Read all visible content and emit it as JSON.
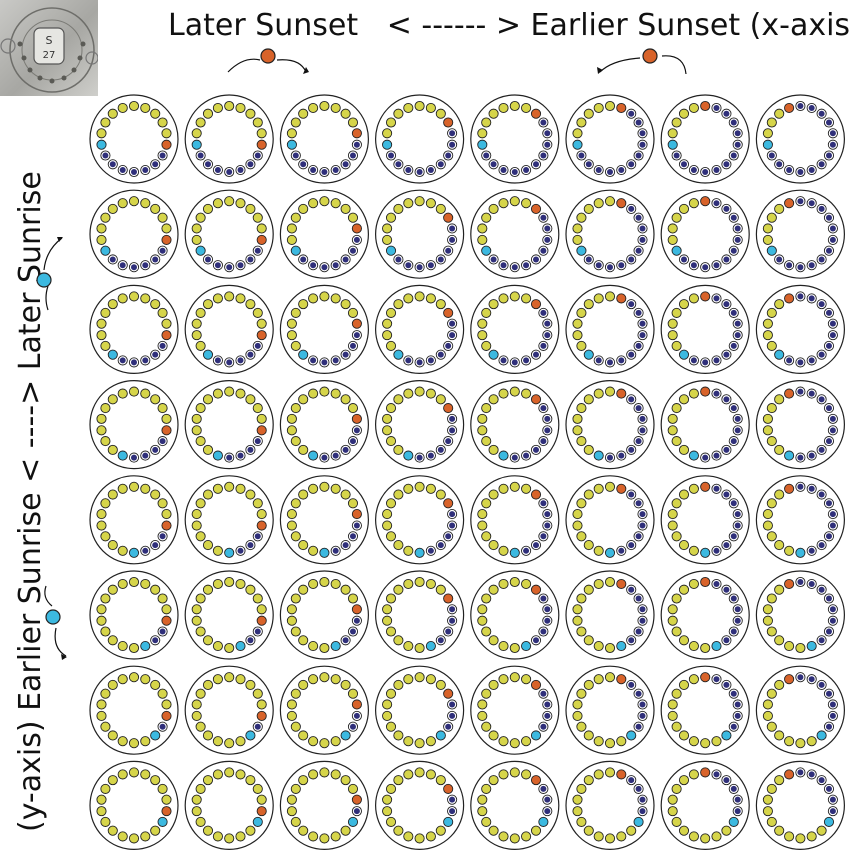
{
  "header": {
    "x_title": "Later Sunset   < ------ > Earlier Sunset (x-axis)",
    "y_title": "(y-axis) Earlier Sunrise < ----> Later Sunrise"
  },
  "photo": {
    "text_line1": "S",
    "text_line2": "27"
  },
  "colors": {
    "day": "#d6d54a",
    "night": "#2f2f7a",
    "sunset": "#d8632a",
    "sunrise": "#3cb9e0",
    "stroke": "#222222"
  },
  "chart_data": {
    "type": "diagram-grid",
    "rows": 8,
    "cols": 8,
    "dots_per_dial": 18,
    "description_of_encoding": "Each dial: 18 dots clockwise from top. Sunset position (orange) moves earlier along x; sunrise position (blue) moves later along y.",
    "sunset_index_by_col": [
      5,
      5,
      4,
      3,
      2,
      1,
      0,
      17
    ],
    "sunrise_index_by_row": [
      13,
      12,
      11,
      10,
      9,
      8,
      7,
      6
    ],
    "legend_icons": [
      {
        "name": "sunset-marker-left",
        "color": "sunset"
      },
      {
        "name": "sunset-marker-right",
        "color": "sunset"
      },
      {
        "name": "sunrise-marker-top",
        "color": "sunrise"
      },
      {
        "name": "sunrise-marker-bottom",
        "color": "sunrise"
      }
    ]
  }
}
